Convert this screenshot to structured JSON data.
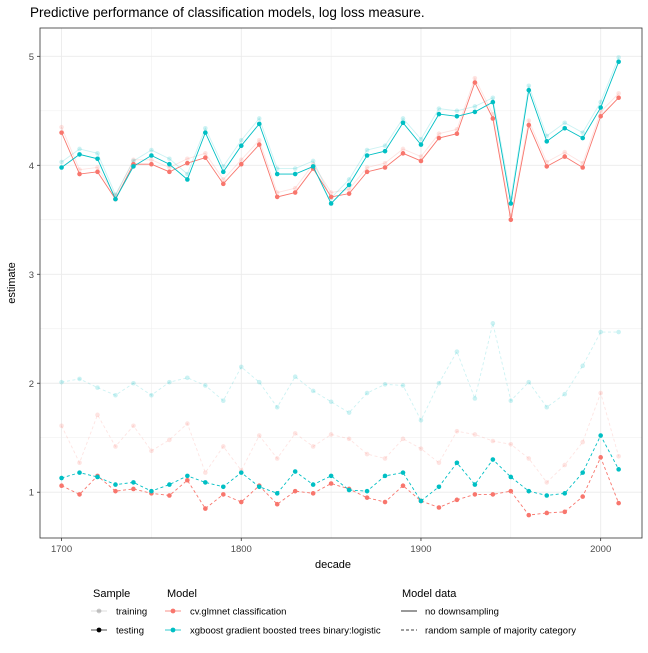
{
  "chart_data": {
    "type": "line",
    "title": "Predictive performance of classification models, log loss measure.",
    "xlabel": "decade",
    "ylabel": "estimate",
    "xlim": [
      1688,
      2023
    ],
    "ylim": [
      0.58,
      5.26
    ],
    "x_ticks": [
      "1700",
      "1800",
      "1900",
      "2000"
    ],
    "y_ticks": [
      "1",
      "2",
      "3",
      "4",
      "5"
    ],
    "grid": true,
    "x": [
      1700,
      1710,
      1720,
      1730,
      1740,
      1750,
      1760,
      1770,
      1780,
      1790,
      1800,
      1810,
      1820,
      1830,
      1840,
      1850,
      1860,
      1870,
      1880,
      1890,
      1900,
      1910,
      1920,
      1930,
      1940,
      1950,
      1960,
      1970,
      1980,
      1990,
      2000,
      2010
    ],
    "series": [
      {
        "model": "cv.glmnet classification",
        "sample": "testing",
        "model_data": "no downsampling",
        "values": [
          4.3,
          3.92,
          3.94,
          3.69,
          4.01,
          4.01,
          3.94,
          4.02,
          4.07,
          3.83,
          4.01,
          4.19,
          3.71,
          3.75,
          3.97,
          3.71,
          3.74,
          3.94,
          3.98,
          4.11,
          4.04,
          4.25,
          4.29,
          4.76,
          4.43,
          3.5,
          4.37,
          3.99,
          4.08,
          3.98,
          4.45,
          4.62
        ]
      },
      {
        "model": "xgboost gradient boosted trees binary:logistic",
        "sample": "testing",
        "model_data": "no downsampling",
        "values": [
          3.98,
          4.1,
          4.06,
          3.69,
          3.99,
          4.09,
          4.01,
          3.87,
          4.3,
          3.94,
          4.18,
          4.38,
          3.92,
          3.92,
          3.99,
          3.65,
          3.82,
          4.09,
          4.13,
          4.39,
          4.19,
          4.47,
          4.45,
          4.49,
          4.58,
          3.65,
          4.69,
          4.22,
          4.34,
          4.25,
          4.53,
          4.95
        ]
      },
      {
        "model": "cv.glmnet classification",
        "sample": "training",
        "model_data": "no downsampling",
        "values": [
          4.35,
          3.96,
          3.98,
          3.72,
          4.05,
          4.05,
          3.98,
          4.06,
          4.11,
          3.87,
          4.05,
          4.23,
          3.75,
          3.79,
          4.01,
          3.75,
          3.78,
          3.98,
          4.02,
          4.15,
          4.08,
          4.29,
          4.33,
          4.8,
          4.47,
          3.54,
          4.41,
          4.03,
          4.12,
          4.02,
          4.49,
          4.66
        ]
      },
      {
        "model": "xgboost gradient boosted trees binary:logistic",
        "sample": "training",
        "model_data": "no downsampling",
        "values": [
          4.03,
          4.15,
          4.11,
          3.73,
          4.04,
          4.14,
          4.06,
          3.92,
          4.34,
          3.99,
          4.23,
          4.43,
          3.97,
          3.97,
          4.04,
          3.7,
          3.87,
          4.14,
          4.18,
          4.43,
          4.24,
          4.52,
          4.5,
          4.54,
          4.62,
          3.7,
          4.73,
          4.27,
          4.39,
          4.3,
          4.58,
          4.99
        ]
      },
      {
        "model": "cv.glmnet classification",
        "sample": "testing",
        "model_data": "random sample of majority category",
        "values": [
          1.06,
          0.98,
          1.15,
          1.01,
          1.03,
          0.99,
          0.97,
          1.11,
          0.85,
          0.98,
          0.91,
          1.06,
          0.89,
          1.01,
          0.99,
          1.08,
          1.03,
          0.95,
          0.91,
          1.06,
          0.92,
          0.86,
          0.93,
          0.98,
          0.98,
          1.01,
          0.79,
          0.81,
          0.82,
          0.96,
          1.32,
          0.9
        ]
      },
      {
        "model": "xgboost gradient boosted trees binary:logistic",
        "sample": "testing",
        "model_data": "random sample of majority category",
        "values": [
          1.13,
          1.18,
          1.14,
          1.07,
          1.09,
          1.01,
          1.07,
          1.15,
          1.09,
          1.05,
          1.18,
          1.05,
          0.99,
          1.19,
          1.07,
          1.15,
          1.02,
          1.01,
          1.15,
          1.18,
          0.92,
          1.05,
          1.27,
          1.07,
          1.3,
          1.14,
          1.01,
          0.97,
          0.99,
          1.18,
          1.52,
          1.21
        ]
      },
      {
        "model": "cv.glmnet classification",
        "sample": "training",
        "model_data": "random sample of majority category",
        "values": [
          1.61,
          1.27,
          1.71,
          1.42,
          1.61,
          1.38,
          1.48,
          1.63,
          1.18,
          1.42,
          1.2,
          1.52,
          1.31,
          1.54,
          1.42,
          1.53,
          1.49,
          1.35,
          1.31,
          1.49,
          1.4,
          1.27,
          1.56,
          1.53,
          1.47,
          1.44,
          1.31,
          1.09,
          1.25,
          1.46,
          1.91,
          1.33
        ]
      },
      {
        "model": "xgboost gradient boosted trees binary:logistic",
        "sample": "training",
        "model_data": "random sample of majority category",
        "values": [
          2.01,
          2.04,
          1.96,
          1.89,
          2.0,
          1.89,
          2.01,
          2.05,
          1.98,
          1.84,
          2.15,
          2.01,
          1.78,
          2.06,
          1.93,
          1.83,
          1.73,
          1.91,
          1.99,
          1.98,
          1.66,
          2.0,
          2.29,
          1.86,
          2.55,
          1.84,
          2.01,
          1.78,
          1.9,
          2.16,
          2.47,
          2.47
        ]
      }
    ],
    "colors": {
      "cv.glmnet classification": "#F8766D",
      "xgboost gradient boosted trees binary:logistic": "#00BFC4"
    },
    "legend": {
      "placement": "bottom",
      "sample_title": "Sample",
      "sample_items": [
        "training",
        "testing"
      ],
      "model_title": "Model",
      "model_items": [
        "cv.glmnet classification",
        "xgboost gradient boosted trees binary:logistic"
      ],
      "model_data_title": "Model data",
      "model_data_items": [
        "no downsampling",
        "random sample of majority category"
      ]
    }
  }
}
